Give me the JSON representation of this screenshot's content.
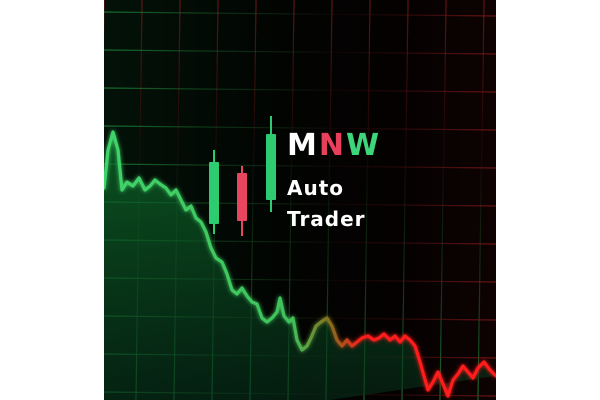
{
  "brand": {
    "letters": [
      {
        "char": "M",
        "color": "#ffffff"
      },
      {
        "char": "N",
        "color": "#e8405a"
      },
      {
        "char": "W",
        "color": "#3dd67a"
      }
    ],
    "line1": "Auto",
    "line2": "Trader"
  },
  "candles": [
    {
      "direction": "up",
      "color": "#2ecc71"
    },
    {
      "direction": "down",
      "color": "#e8455e"
    },
    {
      "direction": "up",
      "color": "#2ecc71"
    }
  ],
  "colors": {
    "background": "#050505",
    "grid_green": "#1e7a3a",
    "grid_red": "#7a1a1a",
    "area_green": "#0c5a24",
    "line_green": "#4cd86a",
    "line_red": "#ff1a1a",
    "page": "#ffffff"
  }
}
